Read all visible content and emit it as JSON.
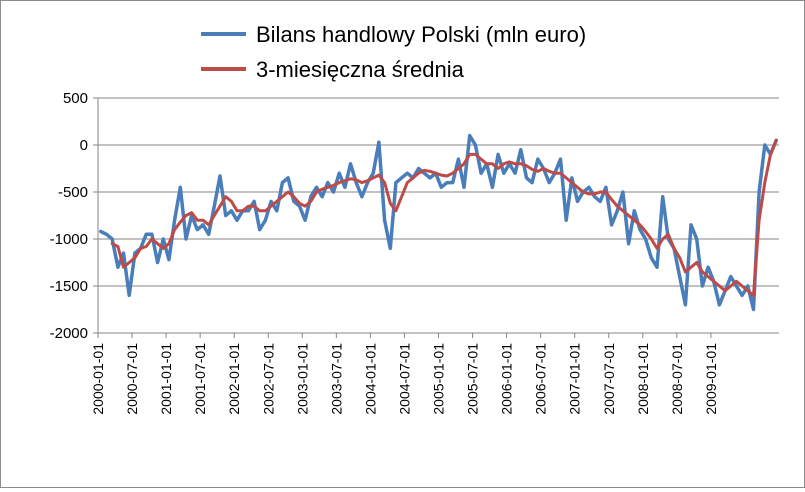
{
  "chart_data": {
    "type": "line",
    "title": "",
    "xlabel": "",
    "ylabel": "",
    "ylim": [
      -2000,
      500
    ],
    "yticks": [
      500,
      0,
      -500,
      -1000,
      -1500,
      -2000
    ],
    "xtick_labels": [
      "2000-01-01",
      "2000-07-01",
      "2001-01-01",
      "2001-07-01",
      "2002-01-01",
      "2002-07-01",
      "2003-01-01",
      "2003-07-01",
      "2004-01-01",
      "2004-07-01",
      "2005-01-01",
      "2005-07-01",
      "2006-01-01",
      "2006-07-01",
      "2007-01-01",
      "2007-07-01",
      "2008-01-01",
      "2008-07-01",
      "2009-01-01"
    ],
    "grid": "horizontal",
    "legend_position": "top",
    "series": [
      {
        "name": "Bilans handlowy Polski (mln euro)",
        "color": "#4a7ebb",
        "values": [
          -920,
          -950,
          -1000,
          -1300,
          -1150,
          -1600,
          -1150,
          -1100,
          -950,
          -950,
          -1250,
          -1000,
          -1220,
          -800,
          -450,
          -1000,
          -750,
          -900,
          -850,
          -950,
          -650,
          -330,
          -750,
          -700,
          -800,
          -700,
          -700,
          -600,
          -900,
          -800,
          -600,
          -700,
          -400,
          -350,
          -600,
          -650,
          -800,
          -550,
          -450,
          -550,
          -400,
          -500,
          -300,
          -450,
          -200,
          -400,
          -550,
          -400,
          -300,
          30,
          -800,
          -1100,
          -400,
          -350,
          -300,
          -350,
          -250,
          -300,
          -350,
          -300,
          -450,
          -400,
          -400,
          -150,
          -450,
          100,
          0,
          -300,
          -200,
          -450,
          -100,
          -300,
          -200,
          -300,
          -50,
          -350,
          -400,
          -150,
          -250,
          -400,
          -300,
          -150,
          -800,
          -350,
          -600,
          -500,
          -450,
          -550,
          -600,
          -450,
          -850,
          -700,
          -500,
          -1050,
          -700,
          -900,
          -1000,
          -1200,
          -1300,
          -550,
          -1000,
          -1100,
          -1400,
          -1700,
          -850,
          -1000,
          -1500,
          -1300,
          -1450,
          -1700,
          -1550,
          -1400,
          -1500,
          -1600,
          -1500,
          -1750,
          -500,
          0,
          -100,
          50
        ],
        "values_note_hidden": false
      },
      {
        "name": "3-miesięczna średnia",
        "color": "#be4b48",
        "values": [
          null,
          null,
          -1050,
          -1080,
          -1300,
          -1250,
          -1200,
          -1100,
          -1080,
          -1000,
          -1050,
          -1100,
          -1050,
          -900,
          -820,
          -750,
          -720,
          -800,
          -800,
          -850,
          -750,
          -650,
          -550,
          -600,
          -700,
          -700,
          -650,
          -650,
          -700,
          -700,
          -650,
          -600,
          -550,
          -500,
          -550,
          -620,
          -650,
          -600,
          -500,
          -470,
          -450,
          -430,
          -400,
          -380,
          -360,
          -370,
          -400,
          -380,
          -350,
          -320,
          -400,
          -620,
          -700,
          -550,
          -400,
          -350,
          -300,
          -270,
          -280,
          -300,
          -320,
          -330,
          -300,
          -250,
          -200,
          -100,
          -100,
          -150,
          -200,
          -200,
          -250,
          -200,
          -180,
          -200,
          -200,
          -220,
          -260,
          -280,
          -250,
          -280,
          -300,
          -300,
          -350,
          -400,
          -450,
          -500,
          -520,
          -520,
          -500,
          -500,
          -580,
          -650,
          -700,
          -750,
          -800,
          -850,
          -920,
          -1000,
          -1100,
          -1000,
          -950,
          -1100,
          -1200,
          -1350,
          -1300,
          -1250,
          -1350,
          -1400,
          -1450,
          -1500,
          -1550,
          -1500,
          -1450,
          -1500,
          -1550,
          -1600,
          -800,
          -400,
          -100,
          50
        ]
      }
    ]
  }
}
